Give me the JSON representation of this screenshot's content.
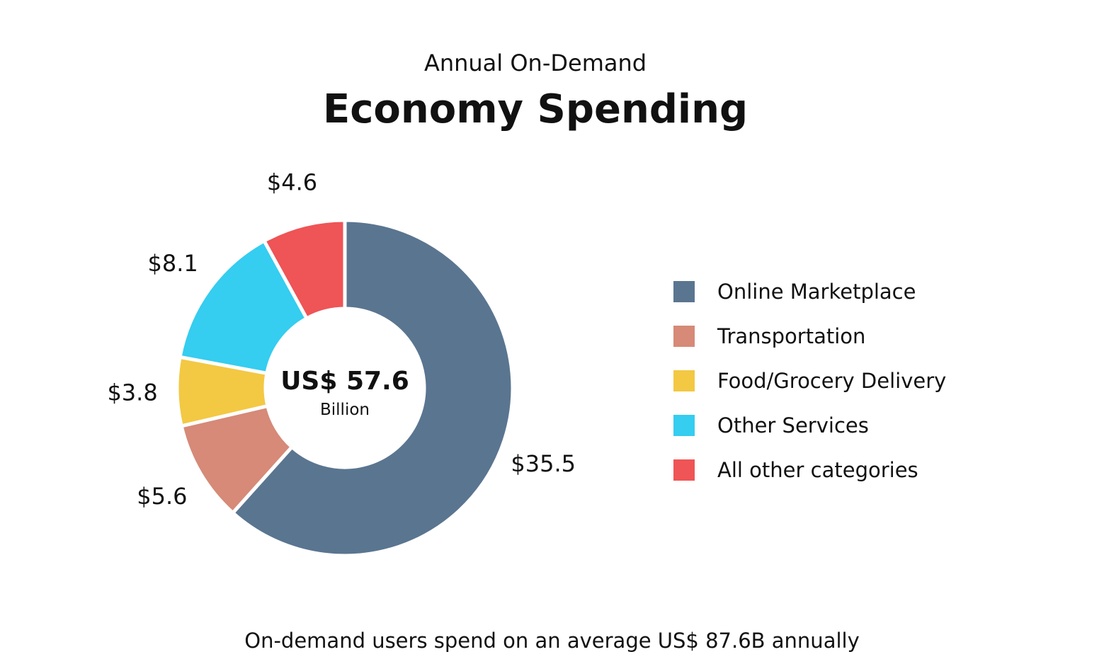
{
  "chart_data": {
    "type": "pie",
    "subtitle": "Annual On-Demand",
    "title": "Economy Spending",
    "center_total": "US$ 57.6",
    "center_unit": "Billion",
    "slices": [
      {
        "label": "Online Marketplace",
        "value": 35.5,
        "value_label": "$35.5",
        "color": "#5a7590"
      },
      {
        "label": "Transportation",
        "value": 5.6,
        "value_label": "$5.6",
        "color": "#d68a77"
      },
      {
        "label": "Food/Grocery Delivery",
        "value": 3.8,
        "value_label": "$3.8",
        "color": "#f3c843"
      },
      {
        "label": "Other Services",
        "value": 8.1,
        "value_label": "$8.1",
        "color": "#35cdf0"
      },
      {
        "label": "All other categories",
        "value": 4.6,
        "value_label": "$4.6",
        "color": "#ef5456"
      }
    ],
    "legend_position": "right",
    "footnote": "On-demand users spend on an average US$ 87.6B annually"
  }
}
